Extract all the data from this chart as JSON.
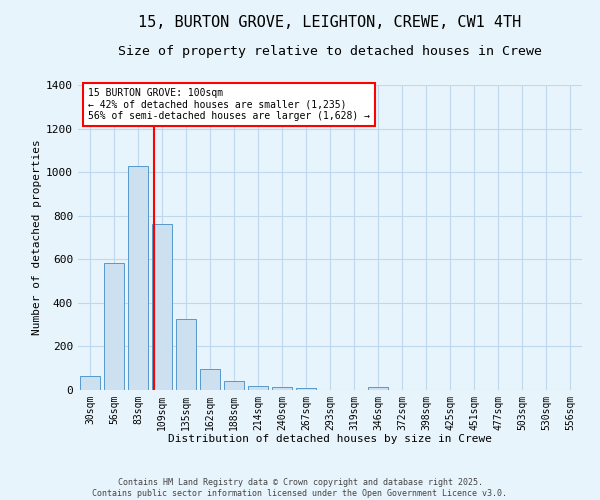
{
  "title": "15, BURTON GROVE, LEIGHTON, CREWE, CW1 4TH",
  "subtitle": "Size of property relative to detached houses in Crewe",
  "xlabel": "Distribution of detached houses by size in Crewe",
  "ylabel": "Number of detached properties",
  "categories": [
    "30sqm",
    "56sqm",
    "83sqm",
    "109sqm",
    "135sqm",
    "162sqm",
    "188sqm",
    "214sqm",
    "240sqm",
    "267sqm",
    "293sqm",
    "319sqm",
    "346sqm",
    "372sqm",
    "398sqm",
    "425sqm",
    "451sqm",
    "477sqm",
    "503sqm",
    "530sqm",
    "556sqm"
  ],
  "values": [
    65,
    585,
    1030,
    760,
    325,
    95,
    40,
    20,
    15,
    10,
    0,
    0,
    15,
    0,
    0,
    0,
    0,
    0,
    0,
    0,
    0
  ],
  "bar_color": "#cce0f0",
  "bar_edge_color": "#5599cc",
  "bg_color": "#e8f4fb",
  "grid_color": "#c0d8ee",
  "red_line_x": 2.65,
  "annotation_text": "15 BURTON GROVE: 100sqm\n← 42% of detached houses are smaller (1,235)\n56% of semi-detached houses are larger (1,628) →",
  "annotation_box_color": "white",
  "annotation_box_edge_color": "red",
  "ylim": [
    0,
    1400
  ],
  "yticks": [
    0,
    200,
    400,
    600,
    800,
    1000,
    1200,
    1400
  ],
  "footer_line1": "Contains HM Land Registry data © Crown copyright and database right 2025.",
  "footer_line2": "Contains public sector information licensed under the Open Government Licence v3.0.",
  "title_fontsize": 11,
  "subtitle_fontsize": 9.5,
  "ann_fontsize": 7.0,
  "tick_fontsize": 7,
  "axis_label_fontsize": 8
}
